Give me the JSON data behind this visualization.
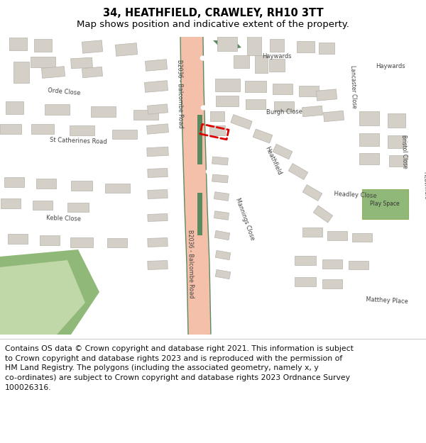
{
  "title": "34, HEATHFIELD, CRAWLEY, RH10 3TT",
  "subtitle": "Map shows position and indicative extent of the property.",
  "footer_lines": [
    "Contains OS data © Crown copyright and database right 2021. This information is subject",
    "to Crown copyright and database rights 2023 and is reproduced with the permission of",
    "HM Land Registry. The polygons (including the associated geometry, namely x, y",
    "co-ordinates) are subject to Crown copyright and database rights 2023 Ordnance Survey",
    "100026316."
  ],
  "title_fontsize": 10.5,
  "subtitle_fontsize": 9.5,
  "footer_fontsize": 7.8,
  "map_bg_color": "#f2ede5",
  "road_pink": "#f5c0aa",
  "road_green_dark": "#5a8a60",
  "building_color": "#d4d0c8",
  "building_edge": "#b8b4ac",
  "street_color": "#ffffff",
  "street_edge": "#d8d4cc",
  "plot_highlight": "#dd0000",
  "green_area": "#c0d8a8",
  "green_dark_area": "#90b878"
}
